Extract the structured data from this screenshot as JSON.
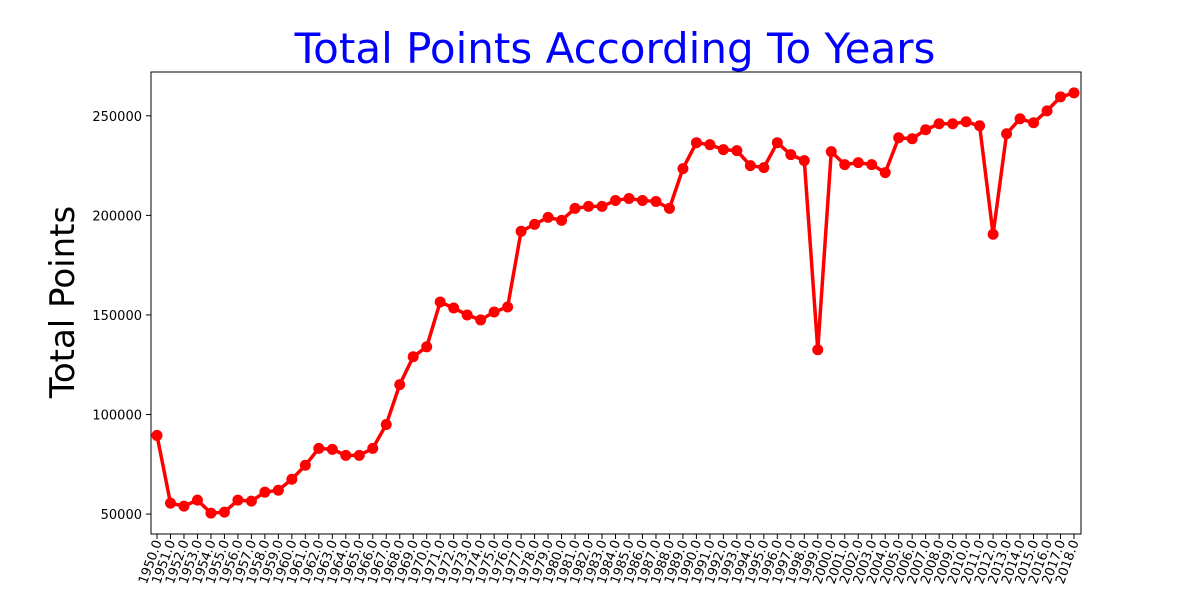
{
  "chart_data": {
    "type": "line",
    "title": "Total Points According To Years",
    "xlabel": "",
    "ylabel": "Total Points",
    "x": [
      "1950.0",
      "1951.0",
      "1952.0",
      "1953.0",
      "1954.0",
      "1955.0",
      "1956.0",
      "1957.0",
      "1958.0",
      "1959.0",
      "1960.0",
      "1961.0",
      "1962.0",
      "1963.0",
      "1964.0",
      "1965.0",
      "1966.0",
      "1967.0",
      "1968.0",
      "1969.0",
      "1970.0",
      "1971.0",
      "1972.0",
      "1973.0",
      "1974.0",
      "1975.0",
      "1976.0",
      "1977.0",
      "1978.0",
      "1979.0",
      "1980.0",
      "1981.0",
      "1982.0",
      "1983.0",
      "1984.0",
      "1985.0",
      "1986.0",
      "1987.0",
      "1988.0",
      "1989.0",
      "1990.0",
      "1991.0",
      "1992.0",
      "1993.0",
      "1994.0",
      "1995.0",
      "1996.0",
      "1997.0",
      "1998.0",
      "1999.0",
      "2000.0",
      "2001.0",
      "2002.0",
      "2003.0",
      "2004.0",
      "2005.0",
      "2006.0",
      "2007.0",
      "2008.0",
      "2009.0",
      "2010.0",
      "2011.0",
      "2012.0",
      "2013.0",
      "2014.0",
      "2015.0",
      "2016.0",
      "2017.0",
      "2018.0"
    ],
    "series": [
      {
        "values": [
          89500,
          55500,
          54000,
          57000,
          50500,
          51000,
          57000,
          56500,
          61000,
          62000,
          67500,
          74500,
          83000,
          82500,
          79500,
          79500,
          83000,
          95000,
          115000,
          129000,
          134000,
          156500,
          153500,
          150000,
          147500,
          151500,
          154000,
          192000,
          195500,
          199000,
          197500,
          203500,
          204500,
          204500,
          207500,
          208500,
          207500,
          207000,
          203500,
          223500,
          236500,
          235500,
          233000,
          232500,
          225000,
          224000,
          236500,
          230500,
          227500,
          132500,
          232000,
          225500,
          226500,
          225500,
          221500,
          239000,
          238500,
          243000,
          246000,
          246000,
          247000,
          245000,
          190500,
          241000,
          248500,
          246500,
          252500,
          259500,
          261500
        ]
      }
    ],
    "yticks": [
      50000,
      100000,
      150000,
      200000,
      250000
    ],
    "ylim": [
      40000,
      272000
    ],
    "grid": false,
    "colors": {
      "line": "#ff0000",
      "title": "#0000ff",
      "axes": "#000000"
    }
  }
}
